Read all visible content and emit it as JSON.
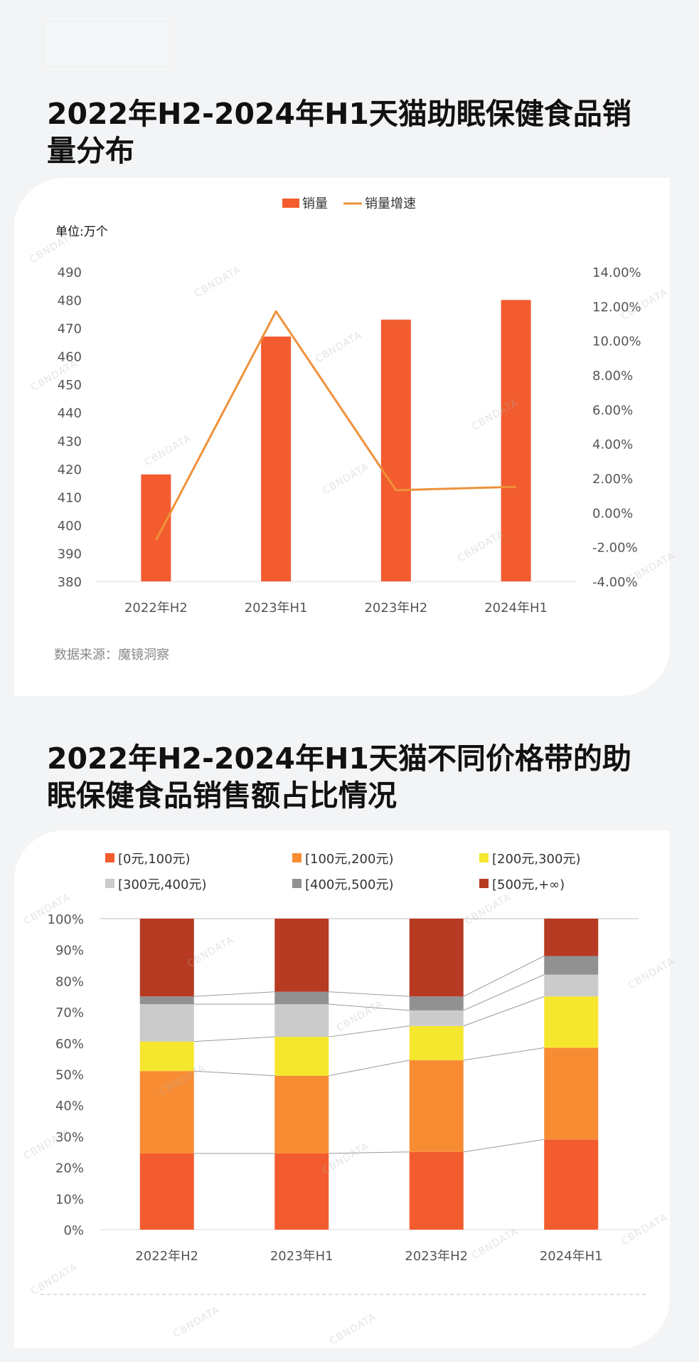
{
  "section1": {
    "title": "2022年H2-2024年H1天猫助眠保健食品销量分布",
    "unit": "单位:万个",
    "source": "数据来源：魔镜洞察"
  },
  "section2": {
    "title": "2022年H2-2024年H1天猫不同价格带的助眠保健食品销售额占比情况"
  },
  "watermark": "CBNDATA",
  "chart_data": [
    {
      "type": "bar",
      "categories": [
        "2022年H2",
        "2023年H1",
        "2023年H2",
        "2024年H1"
      ],
      "series": [
        {
          "name": "销量",
          "type": "bar",
          "axis": "left",
          "color": "#f25c2e",
          "values": [
            418,
            467,
            473,
            480
          ]
        },
        {
          "name": "销量增速",
          "type": "line",
          "axis": "right",
          "color": "#f0913b",
          "values": [
            -1.6,
            11.7,
            1.3,
            1.5
          ]
        }
      ],
      "ylim": [
        380,
        490
      ],
      "yticks": [
        "490",
        "480",
        "470",
        "460",
        "450",
        "440",
        "430",
        "420",
        "410",
        "400",
        "390",
        "380"
      ],
      "y2lim": [
        -4,
        14
      ],
      "y2ticks": [
        "14.00%",
        "12.00%",
        "10.00%",
        "8.00%",
        "6.00%",
        "4.00%",
        "2.00%",
        "0.00%",
        "-2.00%",
        "-4.00%"
      ],
      "legend": "top-center",
      "grid": false
    },
    {
      "type": "bar",
      "stacked": true,
      "categories": [
        "2022年H2",
        "2023年H1",
        "2023年H2",
        "2024年H1"
      ],
      "series": [
        {
          "name": "[0元,100元)",
          "color": "#f25c2e",
          "values": [
            24.5,
            24.5,
            25,
            29
          ]
        },
        {
          "name": "[100元,200元)",
          "color": "#f88c33",
          "values": [
            26.5,
            25,
            29.5,
            29.5
          ]
        },
        {
          "name": "[200元,300元)",
          "color": "#f5e62e",
          "values": [
            9.5,
            12.5,
            11,
            16.5
          ]
        },
        {
          "name": "[300元,400元)",
          "color": "#cbcbcb",
          "values": [
            12,
            10.5,
            5,
            7
          ]
        },
        {
          "name": "[400元,500元)",
          "color": "#919191",
          "values": [
            2.5,
            4,
            4.5,
            6
          ]
        },
        {
          "name": "[500元,+∞)",
          "color": "#b73a22",
          "values": [
            25,
            23.5,
            25,
            12
          ]
        }
      ],
      "ylim": [
        0,
        100
      ],
      "yticks": [
        "100%",
        "90%",
        "80%",
        "70%",
        "60%",
        "50%",
        "40%",
        "30%",
        "20%",
        "10%",
        "0%"
      ],
      "legend": "top",
      "grid": false
    }
  ]
}
